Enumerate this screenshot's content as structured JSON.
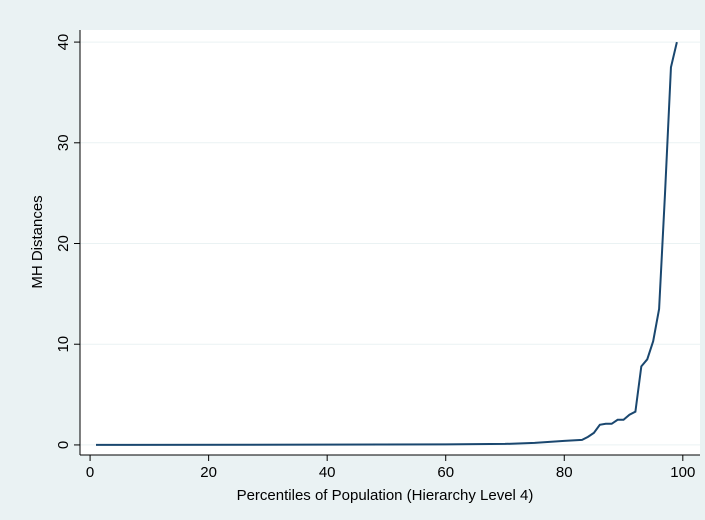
{
  "chart_data": {
    "type": "line",
    "x_label": "Percentiles of Population (Hierarchy Level 4)",
    "y_label": "MH Distances",
    "x": [
      1,
      60,
      70,
      75,
      80,
      83,
      84,
      85,
      86,
      87,
      88,
      89,
      90,
      91,
      92,
      93,
      94,
      95,
      96,
      97,
      98,
      99
    ],
    "series": [
      {
        "color": "#1a476f",
        "values": [
          0,
          0.05,
          0.1,
          0.2,
          0.4,
          0.5,
          0.8,
          1.2,
          2.0,
          2.1,
          2.1,
          2.5,
          2.5,
          3.0,
          3.3,
          7.8,
          8.5,
          10.3,
          13.5,
          25,
          37.5,
          40
        ]
      }
    ],
    "xlim": [
      -1.7,
      102.9
    ],
    "xticks": [
      0,
      20,
      40,
      60,
      80,
      100
    ],
    "ylim": [
      -1,
      41.2
    ],
    "yticks": [
      0,
      10,
      20,
      30,
      40
    ],
    "grid": true
  }
}
